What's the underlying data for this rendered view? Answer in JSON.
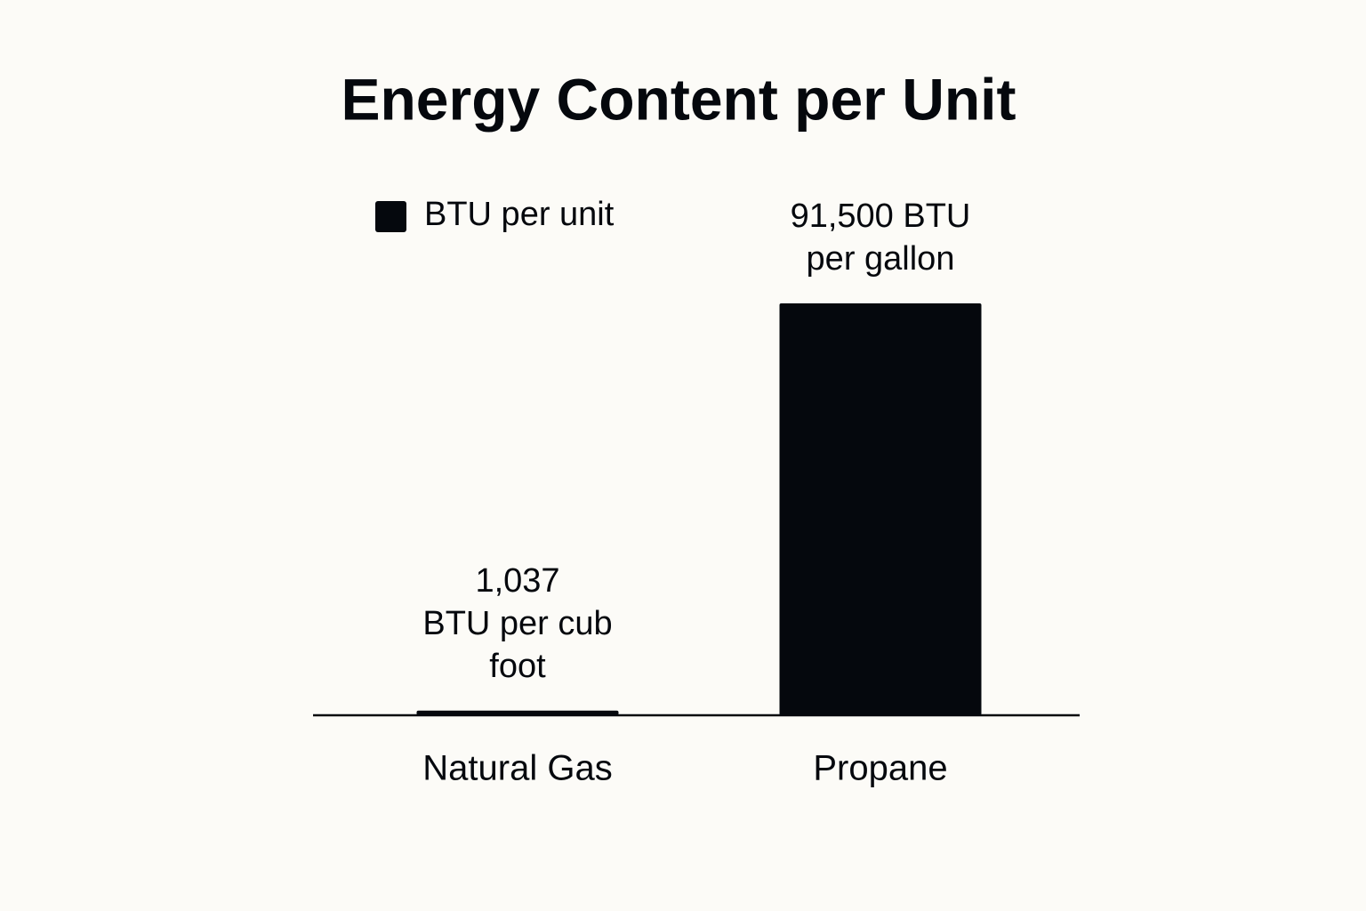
{
  "chart_data": {
    "type": "bar",
    "title": "Energy Content per Unit",
    "categories": [
      "Natural Gas",
      "Propane"
    ],
    "series": [
      {
        "name": "BTU per unit",
        "color": "#05080d",
        "values": [
          1037,
          91500
        ],
        "value_labels": [
          [
            "1,037",
            "BTU per cub",
            "foot"
          ],
          [
            "91,500 BTU",
            "per gallon"
          ]
        ]
      }
    ],
    "legend": "top-left"
  }
}
